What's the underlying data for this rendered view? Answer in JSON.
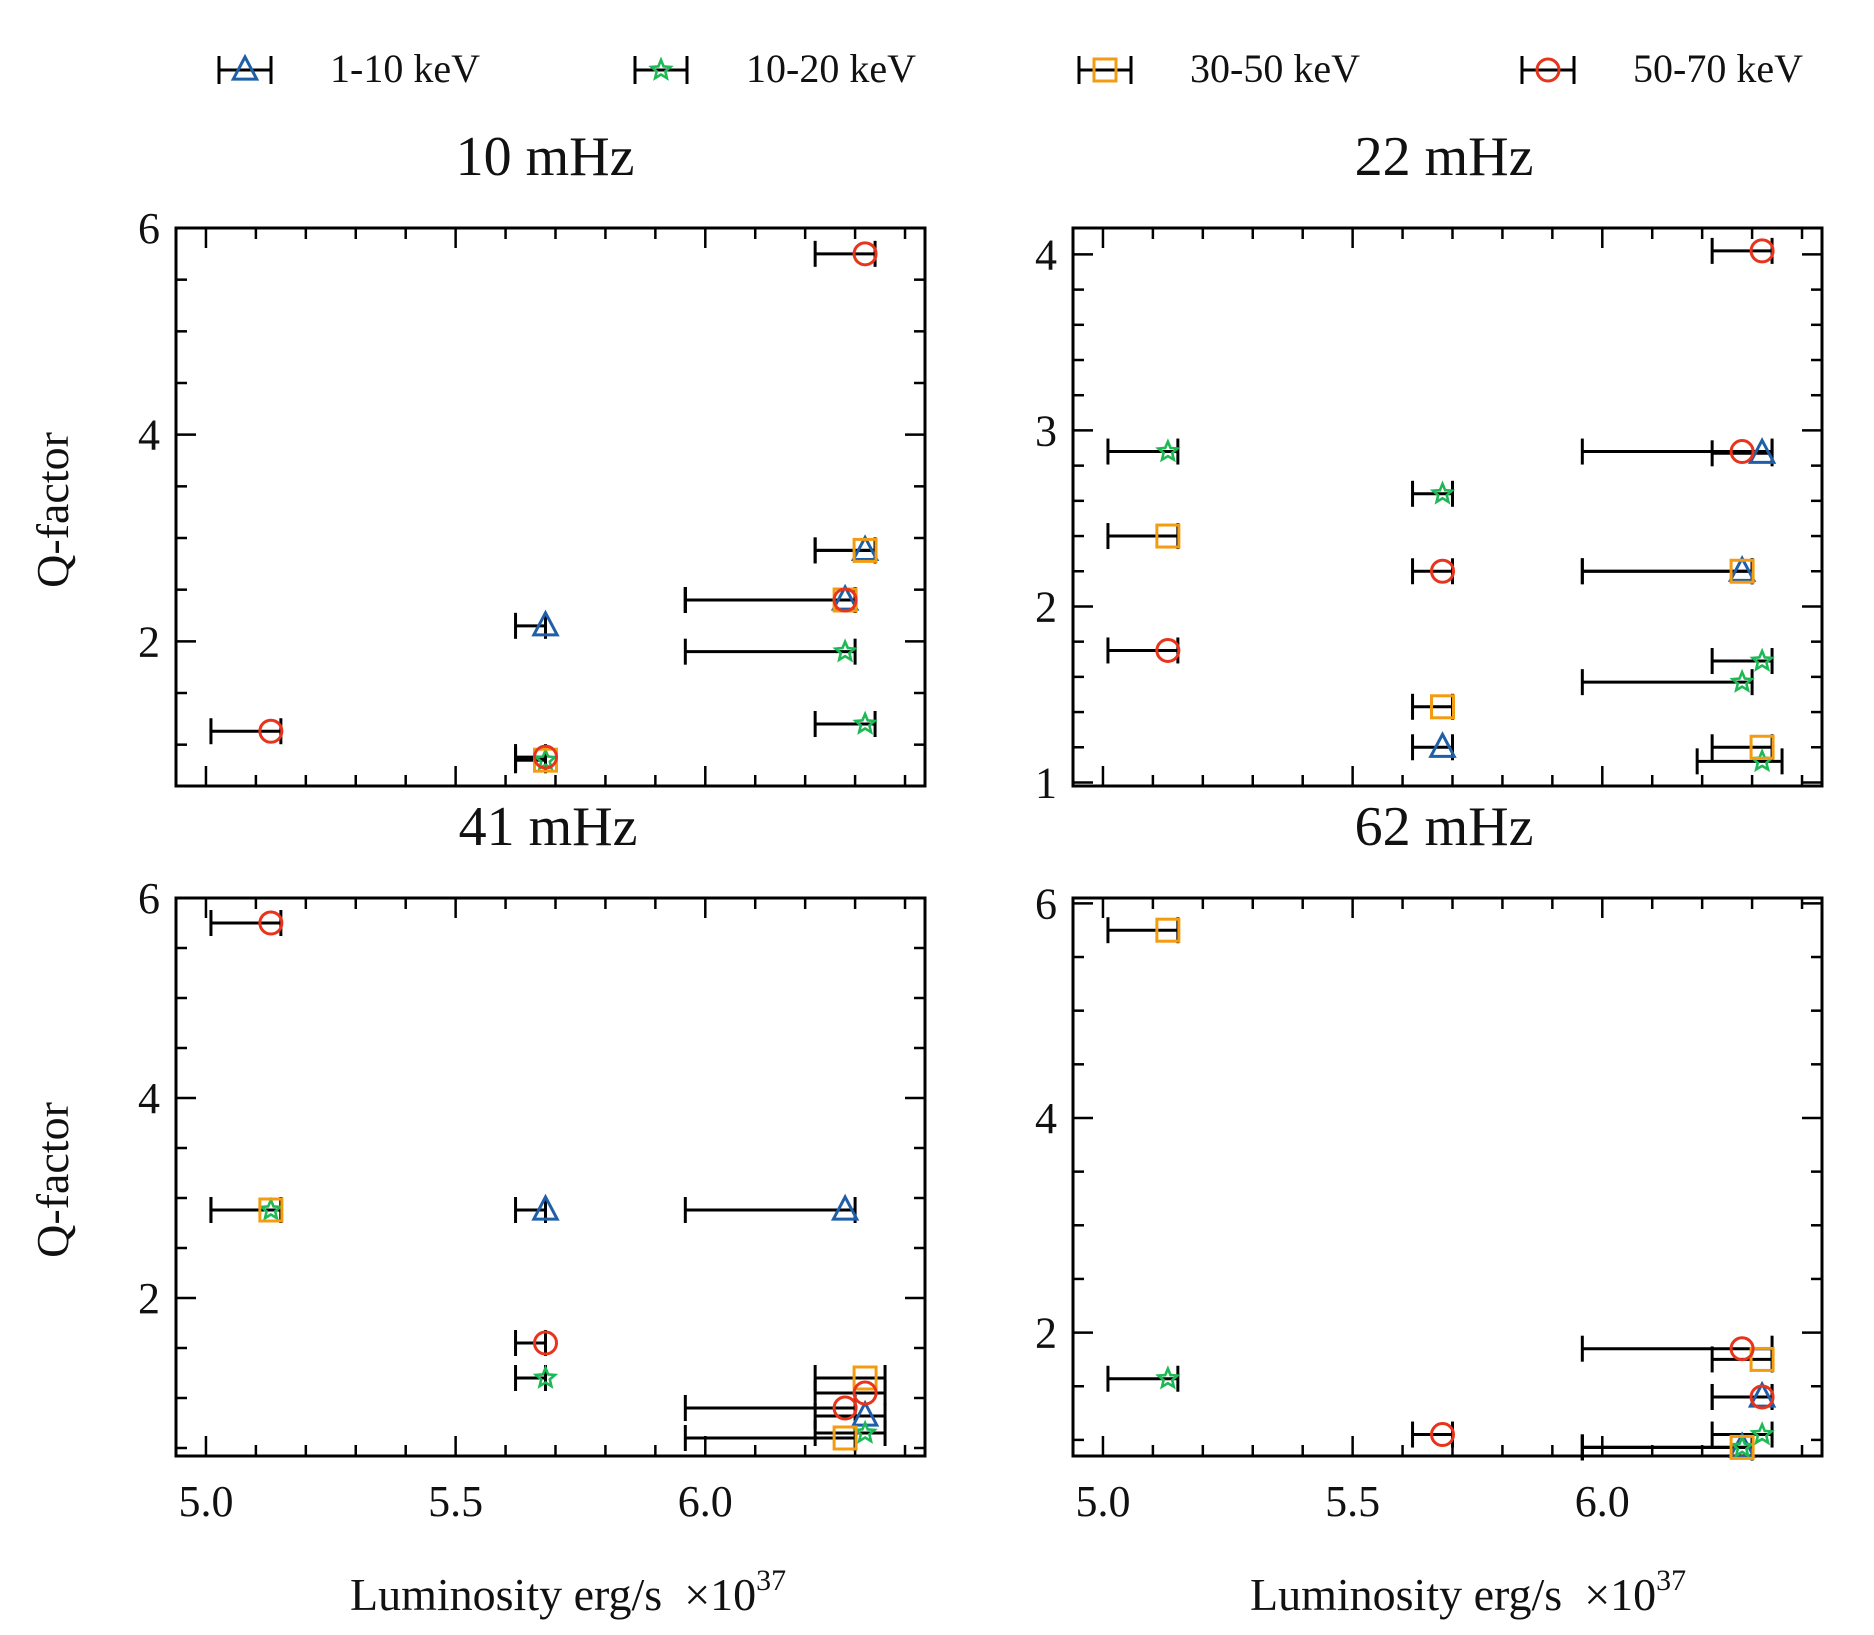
{
  "chart_data": [
    {
      "type": "scatter",
      "title": "10 mHz",
      "xlabel": "",
      "ylabel": "Q-factor",
      "xlim": [
        4.94,
        6.44
      ],
      "ylim": [
        0.6,
        6.0
      ],
      "yticks": [
        2,
        4,
        6
      ],
      "ytick_labels": [
        "2",
        "4",
        "6"
      ],
      "xticks": [
        5.0,
        5.5,
        6.0
      ],
      "xtick_labels": [],
      "series": [
        {
          "name": "1-10 keV",
          "points": [
            {
              "x": 5.68,
              "y": 2.15,
              "xerr_lo": 0.06,
              "xerr_hi": 0.0
            },
            {
              "x": 6.32,
              "y": 2.88,
              "xerr_lo": 0.1,
              "xerr_hi": 0.02
            },
            {
              "x": 6.28,
              "y": 2.4,
              "xerr_lo": 0.32,
              "xerr_hi": 0.02
            }
          ]
        },
        {
          "name": "10-20 keV",
          "points": [
            {
              "x": 5.68,
              "y": 0.85,
              "xerr_lo": 0.06,
              "xerr_hi": 0.0
            },
            {
              "x": 6.28,
              "y": 1.9,
              "xerr_lo": 0.32,
              "xerr_hi": 0.02
            },
            {
              "x": 6.32,
              "y": 1.2,
              "xerr_lo": 0.1,
              "xerr_hi": 0.02
            }
          ]
        },
        {
          "name": "30-50 keV",
          "points": [
            {
              "x": 5.68,
              "y": 0.85,
              "xerr_lo": 0.06,
              "xerr_hi": 0.0
            },
            {
              "x": 6.32,
              "y": 2.88,
              "xerr_lo": 0.1,
              "xerr_hi": 0.02
            },
            {
              "x": 6.28,
              "y": 2.4,
              "xerr_lo": 0.32,
              "xerr_hi": 0.02
            }
          ]
        },
        {
          "name": "50-70 keV",
          "points": [
            {
              "x": 5.13,
              "y": 1.13,
              "xerr_lo": 0.12,
              "xerr_hi": 0.02
            },
            {
              "x": 5.68,
              "y": 0.88,
              "xerr_lo": 0.06,
              "xerr_hi": 0.0
            },
            {
              "x": 6.28,
              "y": 2.4,
              "xerr_lo": 0.32,
              "xerr_hi": 0.02
            },
            {
              "x": 6.32,
              "y": 5.75,
              "xerr_lo": 0.1,
              "xerr_hi": 0.02
            }
          ]
        }
      ]
    },
    {
      "type": "scatter",
      "title": "22 mHz",
      "xlabel": "",
      "ylabel": "",
      "xlim": [
        4.94,
        6.44
      ],
      "ylim": [
        0.98,
        4.15
      ],
      "yticks": [
        1,
        2,
        3,
        4
      ],
      "ytick_labels": [
        "1",
        "2",
        "3",
        "4"
      ],
      "xticks": [
        5.0,
        5.5,
        6.0
      ],
      "xtick_labels": [],
      "series": [
        {
          "name": "1-10 keV",
          "points": [
            {
              "x": 6.32,
              "y": 2.87,
              "xerr_lo": 0.1,
              "xerr_hi": 0.02
            },
            {
              "x": 6.28,
              "y": 2.2,
              "xerr_lo": 0.32,
              "xerr_hi": 0.02
            },
            {
              "x": 5.68,
              "y": 1.2,
              "xerr_lo": 0.06,
              "xerr_hi": 0.02
            }
          ]
        },
        {
          "name": "10-20 keV",
          "points": [
            {
              "x": 5.13,
              "y": 2.88,
              "xerr_lo": 0.12,
              "xerr_hi": 0.02
            },
            {
              "x": 5.68,
              "y": 2.64,
              "xerr_lo": 0.06,
              "xerr_hi": 0.02
            },
            {
              "x": 6.32,
              "y": 1.69,
              "xerr_lo": 0.1,
              "xerr_hi": 0.02
            },
            {
              "x": 6.28,
              "y": 1.57,
              "xerr_lo": 0.32,
              "xerr_hi": 0.02
            },
            {
              "x": 6.32,
              "y": 1.12,
              "xerr_lo": 0.13,
              "xerr_hi": 0.04
            }
          ]
        },
        {
          "name": "30-50 keV",
          "points": [
            {
              "x": 5.13,
              "y": 2.4,
              "xerr_lo": 0.12,
              "xerr_hi": 0.02
            },
            {
              "x": 6.28,
              "y": 2.2,
              "xerr_lo": 0.32,
              "xerr_hi": 0.02
            },
            {
              "x": 5.68,
              "y": 1.43,
              "xerr_lo": 0.06,
              "xerr_hi": 0.02
            },
            {
              "x": 6.32,
              "y": 1.2,
              "xerr_lo": 0.1,
              "xerr_hi": 0.02
            }
          ]
        },
        {
          "name": "50-70 keV",
          "points": [
            {
              "x": 6.32,
              "y": 4.02,
              "xerr_lo": 0.1,
              "xerr_hi": 0.02
            },
            {
              "x": 6.28,
              "y": 2.88,
              "xerr_lo": 0.32,
              "xerr_hi": 0.06
            },
            {
              "x": 5.68,
              "y": 2.2,
              "xerr_lo": 0.06,
              "xerr_hi": 0.02
            },
            {
              "x": 5.13,
              "y": 1.75,
              "xerr_lo": 0.12,
              "xerr_hi": 0.02
            }
          ]
        }
      ]
    },
    {
      "type": "scatter",
      "title": "41 mHz",
      "xlabel": "Luminosity erg/s",
      "x_scale_label": "×10",
      "x_scale_exp": "37",
      "ylabel": "Q-factor",
      "xlim": [
        4.94,
        6.44
      ],
      "ylim": [
        0.42,
        6.0
      ],
      "yticks": [
        2,
        4,
        6
      ],
      "ytick_labels": [
        "2",
        "4",
        "6"
      ],
      "xticks": [
        5.0,
        5.5,
        6.0
      ],
      "xtick_labels": [
        "5.0",
        "5.5",
        "6.0"
      ],
      "series": [
        {
          "name": "1-10 keV",
          "points": [
            {
              "x": 5.68,
              "y": 2.88,
              "xerr_lo": 0.06,
              "xerr_hi": 0.0
            },
            {
              "x": 6.28,
              "y": 2.88,
              "xerr_lo": 0.32,
              "xerr_hi": 0.02
            },
            {
              "x": 6.32,
              "y": 0.82,
              "xerr_lo": 0.1,
              "xerr_hi": 0.04
            }
          ]
        },
        {
          "name": "10-20 keV",
          "points": [
            {
              "x": 5.13,
              "y": 2.88,
              "xerr_lo": 0.12,
              "xerr_hi": 0.02
            },
            {
              "x": 5.68,
              "y": 1.2,
              "xerr_lo": 0.06,
              "xerr_hi": 0.0
            },
            {
              "x": 6.32,
              "y": 0.65,
              "xerr_lo": 0.1,
              "xerr_hi": 0.04
            }
          ]
        },
        {
          "name": "30-50 keV",
          "points": [
            {
              "x": 5.13,
              "y": 2.88,
              "xerr_lo": 0.12,
              "xerr_hi": 0.02
            },
            {
              "x": 6.32,
              "y": 1.2,
              "xerr_lo": 0.1,
              "xerr_hi": 0.04
            },
            {
              "x": 6.28,
              "y": 0.6,
              "xerr_lo": 0.32,
              "xerr_hi": 0.02
            }
          ]
        },
        {
          "name": "50-70 keV",
          "points": [
            {
              "x": 5.13,
              "y": 5.75,
              "xerr_lo": 0.12,
              "xerr_hi": 0.02
            },
            {
              "x": 5.68,
              "y": 1.55,
              "xerr_lo": 0.06,
              "xerr_hi": 0.0
            },
            {
              "x": 6.32,
              "y": 1.05,
              "xerr_lo": 0.1,
              "xerr_hi": 0.04
            },
            {
              "x": 6.28,
              "y": 0.9,
              "xerr_lo": 0.32,
              "xerr_hi": 0.02
            }
          ]
        }
      ]
    },
    {
      "type": "scatter",
      "title": "62 mHz",
      "xlabel": "Luminosity erg/s",
      "x_scale_label": "×10",
      "x_scale_exp": "37",
      "ylabel": "",
      "xlim": [
        4.94,
        6.44
      ],
      "ylim": [
        0.85,
        6.05
      ],
      "yticks": [
        2,
        4,
        6
      ],
      "ytick_labels": [
        "2",
        "4",
        "6"
      ],
      "xticks": [
        5.0,
        5.5,
        6.0
      ],
      "xtick_labels": [
        "5.0",
        "5.5",
        "6.0"
      ],
      "series": [
        {
          "name": "1-10 keV",
          "points": [
            {
              "x": 6.32,
              "y": 1.4,
              "xerr_lo": 0.1,
              "xerr_hi": 0.02
            },
            {
              "x": 6.28,
              "y": 0.93,
              "xerr_lo": 0.32,
              "xerr_hi": 0.02
            }
          ]
        },
        {
          "name": "10-20 keV",
          "points": [
            {
              "x": 5.13,
              "y": 1.57,
              "xerr_lo": 0.12,
              "xerr_hi": 0.02
            },
            {
              "x": 6.32,
              "y": 1.05,
              "xerr_lo": 0.1,
              "xerr_hi": 0.02
            },
            {
              "x": 6.28,
              "y": 0.93,
              "xerr_lo": 0.32,
              "xerr_hi": 0.02
            }
          ]
        },
        {
          "name": "30-50 keV",
          "points": [
            {
              "x": 5.13,
              "y": 5.75,
              "xerr_lo": 0.12,
              "xerr_hi": 0.02
            },
            {
              "x": 6.32,
              "y": 1.75,
              "xerr_lo": 0.1,
              "xerr_hi": 0.02
            },
            {
              "x": 6.28,
              "y": 0.93,
              "xerr_lo": 0.32,
              "xerr_hi": 0.02
            }
          ]
        },
        {
          "name": "50-70 keV",
          "points": [
            {
              "x": 6.28,
              "y": 1.85,
              "xerr_lo": 0.32,
              "xerr_hi": 0.06
            },
            {
              "x": 6.32,
              "y": 1.4,
              "xerr_lo": 0.1,
              "xerr_hi": 0.02
            },
            {
              "x": 5.68,
              "y": 1.05,
              "xerr_lo": 0.06,
              "xerr_hi": 0.02
            }
          ]
        }
      ]
    }
  ],
  "legend": {
    "placement": "top",
    "items": [
      {
        "label": "1-10 keV",
        "marker": "triangle",
        "color": "#1f5fa8"
      },
      {
        "label": "10-20 keV",
        "marker": "star",
        "color": "#1db954"
      },
      {
        "label": "30-50 keV",
        "marker": "square",
        "color": "#f39c12"
      },
      {
        "label": "50-70 keV",
        "marker": "circle",
        "color": "#e8341c"
      }
    ]
  }
}
